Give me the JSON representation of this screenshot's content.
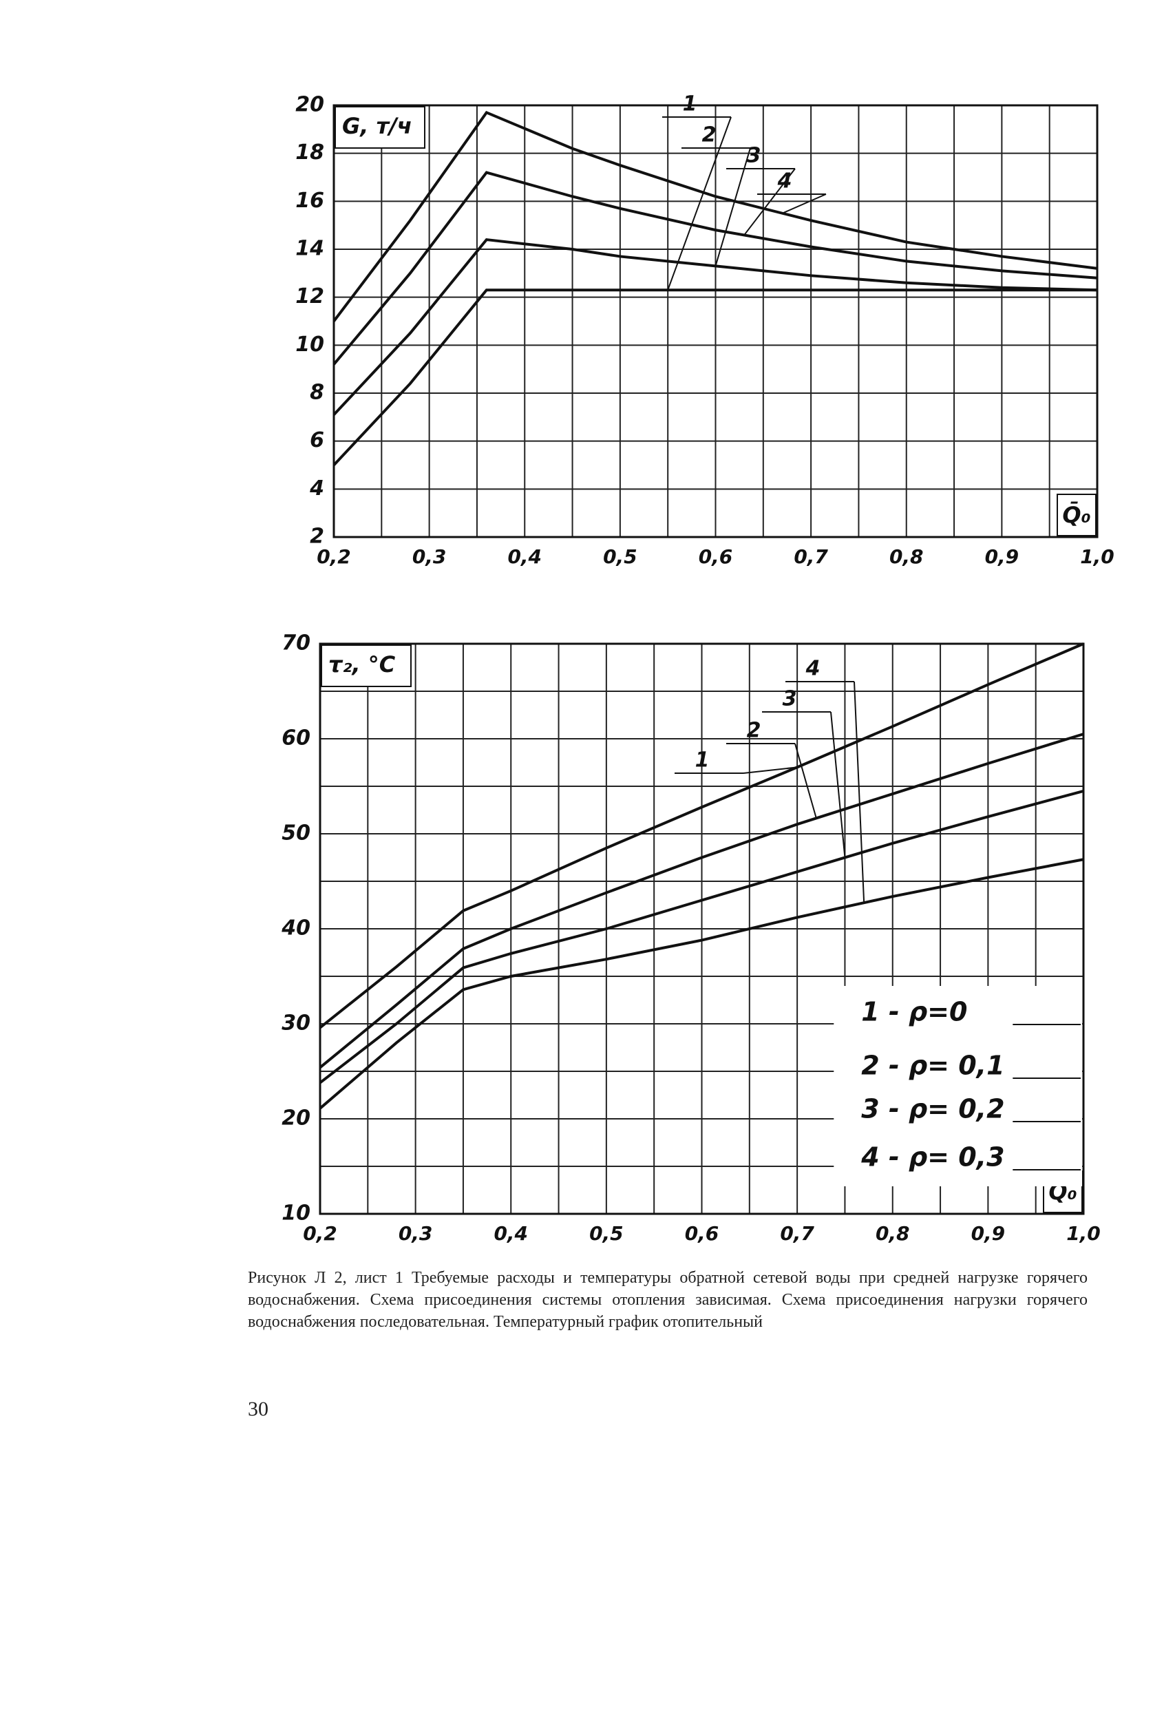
{
  "chart_data": [
    {
      "type": "line",
      "ylabel": "G, т/ч",
      "xlabel": "Q̄₀",
      "x": [
        0.2,
        0.28,
        0.36,
        0.45,
        0.5,
        0.6,
        0.7,
        0.8,
        0.9,
        1.0
      ],
      "series": [
        {
          "name": "1",
          "color": "#111111",
          "values": [
            5.0,
            8.4,
            12.3,
            12.3,
            12.3,
            12.3,
            12.3,
            12.3,
            12.3,
            12.3
          ]
        },
        {
          "name": "2",
          "color": "#111111",
          "values": [
            7.1,
            10.5,
            14.4,
            14.0,
            13.7,
            13.3,
            12.9,
            12.6,
            12.4,
            12.3
          ]
        },
        {
          "name": "3",
          "color": "#111111",
          "values": [
            9.2,
            13.0,
            17.2,
            16.2,
            15.7,
            14.8,
            14.1,
            13.5,
            13.1,
            12.8
          ]
        },
        {
          "name": "4",
          "color": "#111111",
          "values": [
            11.0,
            15.2,
            19.7,
            18.2,
            17.5,
            16.2,
            15.2,
            14.3,
            13.7,
            13.2
          ]
        }
      ],
      "xlim": [
        0.2,
        1.0
      ],
      "ylim": [
        2,
        20
      ],
      "xticks": [
        {
          "value": 0.2,
          "label": "0,2"
        },
        {
          "value": 0.3,
          "label": "0,3"
        },
        {
          "value": 0.4,
          "label": "0,4"
        },
        {
          "value": 0.5,
          "label": "0,5"
        },
        {
          "value": 0.6,
          "label": "0,6"
        },
        {
          "value": 0.7,
          "label": "0,7"
        },
        {
          "value": 0.8,
          "label": "0,8"
        },
        {
          "value": 0.9,
          "label": "0,9"
        },
        {
          "value": 1.0,
          "label": "1,0"
        }
      ],
      "yticks": [
        2,
        4,
        6,
        8,
        10,
        12,
        14,
        16,
        18,
        20
      ],
      "minor_xticks": [
        0.25,
        0.35,
        0.45,
        0.55,
        0.65,
        0.75,
        0.85,
        0.95
      ],
      "grid": true
    },
    {
      "type": "line",
      "ylabel": "τ₂, °C",
      "xlabel": "Q̄₀",
      "curve_labels": [
        "1",
        "2",
        "3",
        "4"
      ],
      "x": [
        0.2,
        0.28,
        0.35,
        0.4,
        0.5,
        0.6,
        0.7,
        0.8,
        0.9,
        1.0
      ],
      "series": [
        {
          "name": "1 - ρ=0",
          "color": "#111111",
          "values": [
            29.6,
            36.0,
            41.9,
            44.0,
            48.5,
            52.8,
            57.0,
            61.3,
            65.7,
            70.0
          ]
        },
        {
          "name": "2 - ρ= 0,1",
          "color": "#111111",
          "values": [
            25.4,
            32.0,
            37.9,
            40.0,
            43.8,
            47.5,
            51.0,
            54.2,
            57.4,
            60.5
          ]
        },
        {
          "name": "3 - ρ= 0,2",
          "color": "#111111",
          "values": [
            23.8,
            30.0,
            35.9,
            37.4,
            40.0,
            43.0,
            46.0,
            49.0,
            51.8,
            54.5
          ]
        },
        {
          "name": "4 - ρ= 0,3",
          "color": "#111111",
          "values": [
            21.1,
            28.0,
            33.6,
            35.0,
            36.8,
            38.8,
            41.2,
            43.4,
            45.4,
            47.3
          ]
        }
      ],
      "xlim": [
        0.2,
        1.0
      ],
      "ylim": [
        10,
        70
      ],
      "xticks": [
        {
          "value": 0.2,
          "label": "0,2"
        },
        {
          "value": 0.3,
          "label": "0,3"
        },
        {
          "value": 0.4,
          "label": "0,4"
        },
        {
          "value": 0.5,
          "label": "0,5"
        },
        {
          "value": 0.6,
          "label": "0,6"
        },
        {
          "value": 0.7,
          "label": "0,7"
        },
        {
          "value": 0.8,
          "label": "0,8"
        },
        {
          "value": 0.9,
          "label": "0,9"
        },
        {
          "value": 1.0,
          "label": "1,0"
        }
      ],
      "yticks": [
        10,
        20,
        30,
        40,
        50,
        60,
        70
      ],
      "minor_xticks": [
        0.25,
        0.35,
        0.45,
        0.55,
        0.65,
        0.75,
        0.85,
        0.95
      ],
      "minor_yticks": [
        15,
        25,
        35,
        45,
        55,
        65
      ],
      "grid": true,
      "legend": "lower right"
    }
  ],
  "caption": "Рисунок Л 2, лист 1  Требуемые расходы и температуры обратной сетевой воды при средней нагрузке горячего водоснабжения. Схема присоединения системы отопления зависимая. Схема присоединения нагрузки горячего водоснабжения последовательная. Температурный график отопительный",
  "page_number": "30"
}
